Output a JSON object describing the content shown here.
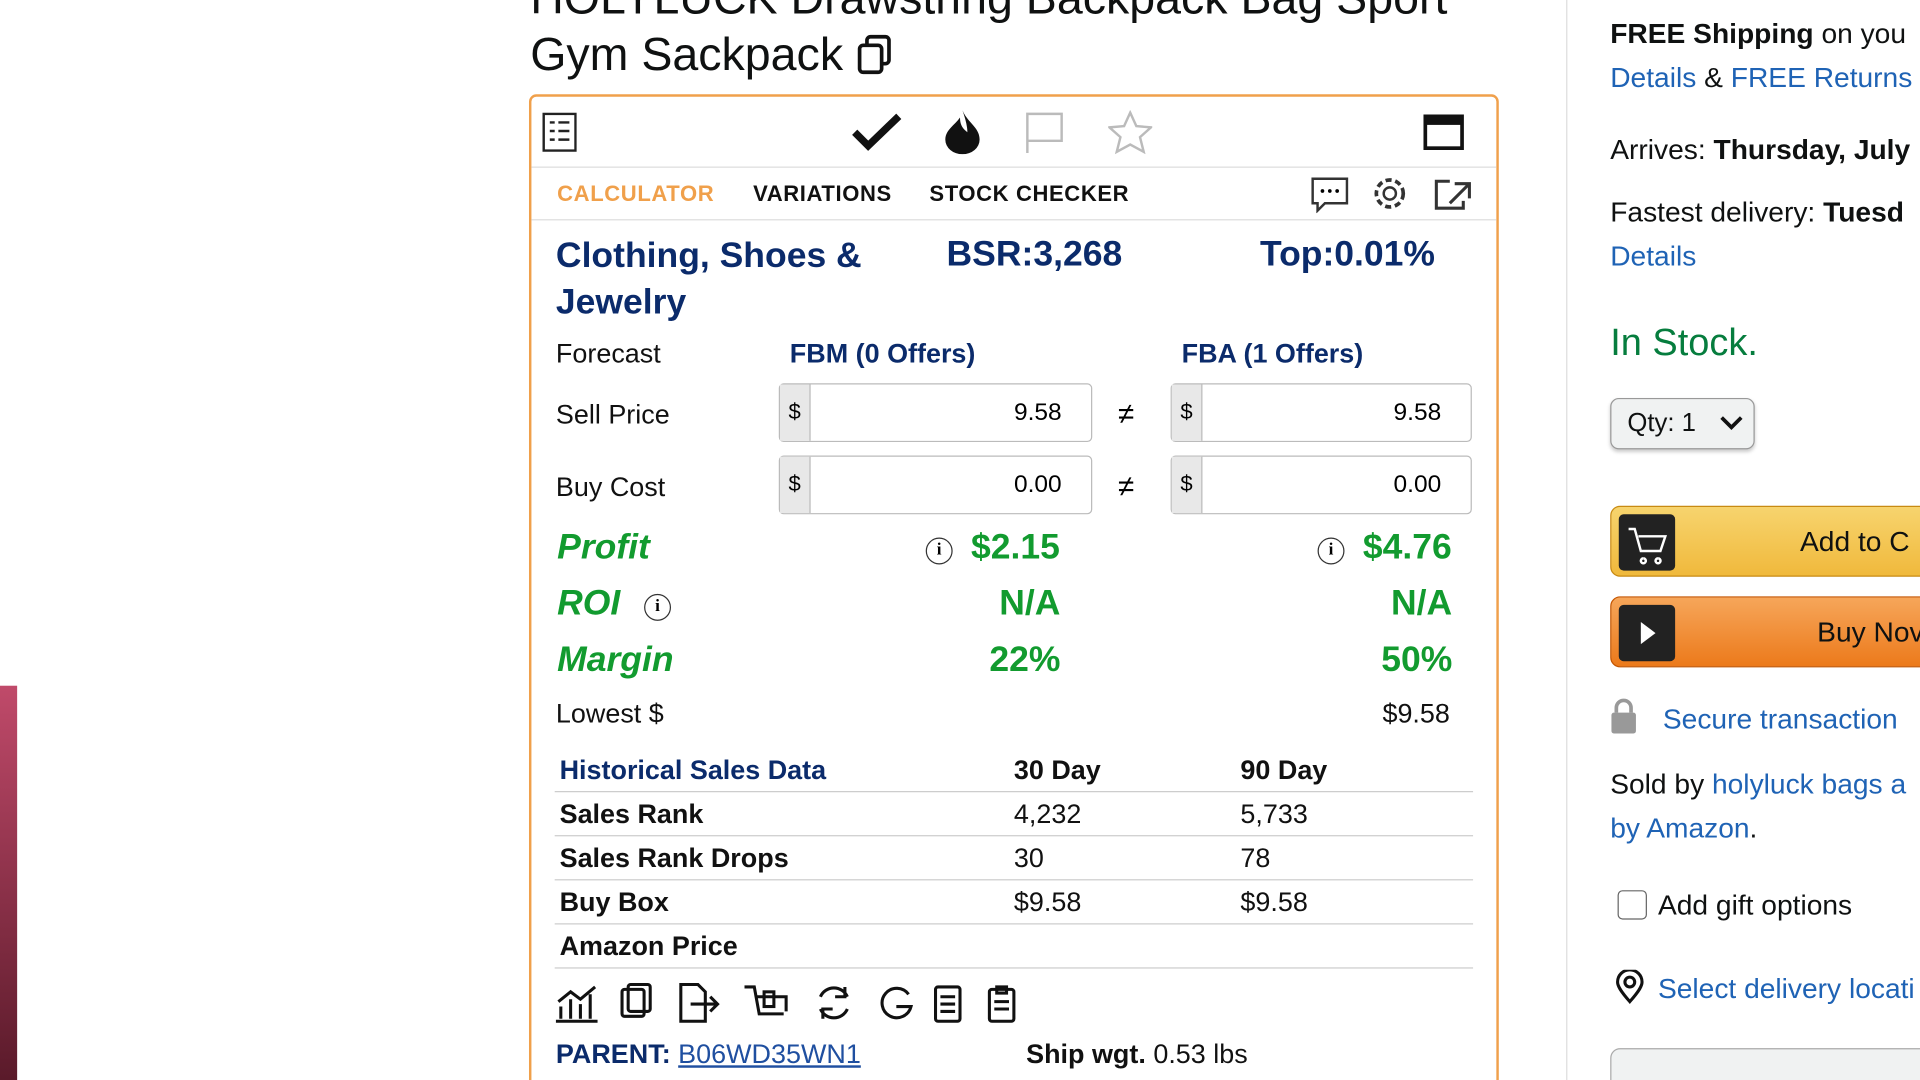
{
  "product": {
    "title_line1": "HOLYLUCK Drawstring Backpack Bag Sport",
    "title_line2": "Gym Sackpack"
  },
  "extension": {
    "tabs": [
      "CALCULATOR",
      "VARIATIONS",
      "STOCK CHECKER"
    ],
    "category": "Clothing, Shoes & Jewelry",
    "bsr": "BSR:3,268",
    "top": "Top:0.01%",
    "forecast": "Forecast",
    "fbm_header": "FBM (0 Offers)",
    "fba_header": "FBA (1 Offers)",
    "currency": "$",
    "not_equal": "≠",
    "sell_price": {
      "label": "Sell Price",
      "fbm": "9.58",
      "fba": "9.58"
    },
    "buy_cost": {
      "label": "Buy Cost",
      "fbm": "0.00",
      "fba": "0.00"
    },
    "profit": {
      "label": "Profit",
      "fbm": "$2.15",
      "fba": "$4.76"
    },
    "roi": {
      "label": "ROI",
      "fbm": "N/A",
      "fba": "N/A"
    },
    "margin": {
      "label": "Margin",
      "fbm": "22%",
      "fba": "50%"
    },
    "lowest": {
      "label": "Lowest $",
      "fba": "$9.58"
    },
    "history": {
      "header": [
        "Historical Sales Data",
        "30 Day",
        "90 Day"
      ],
      "rows": [
        [
          "Sales Rank",
          "4,232",
          "5,733"
        ],
        [
          "Sales Rank Drops",
          "30",
          "78"
        ],
        [
          "Buy Box",
          "$9.58",
          "$9.58"
        ],
        [
          "Amazon Price",
          "",
          ""
        ]
      ]
    },
    "parent_label": "PARENT:",
    "parent_asin": "B06WD35WN1",
    "ship_label": "Ship wgt.",
    "ship_value": "0.53 lbs"
  },
  "buybox": {
    "free_shipping": "FREE Shipping",
    "on_you": "on you",
    "details": "Details",
    "amp": "&",
    "free_returns": "FREE Returns",
    "arrives_label": "Arrives:",
    "arrives_value": "Thursday, July",
    "fastest_label": "Fastest delivery:",
    "fastest_value": "Tuesd",
    "details2": "Details",
    "in_stock": "In Stock.",
    "qty": "Qty: 1",
    "add_to_cart": "Add to C",
    "buy_now": "Buy Nov",
    "secure": "Secure transaction",
    "sold_by": "Sold by",
    "seller": "holyluck bags a",
    "by_amazon": "by Amazon",
    "period": ".",
    "gift": "Add gift options",
    "delivery": "Select delivery locati"
  }
}
